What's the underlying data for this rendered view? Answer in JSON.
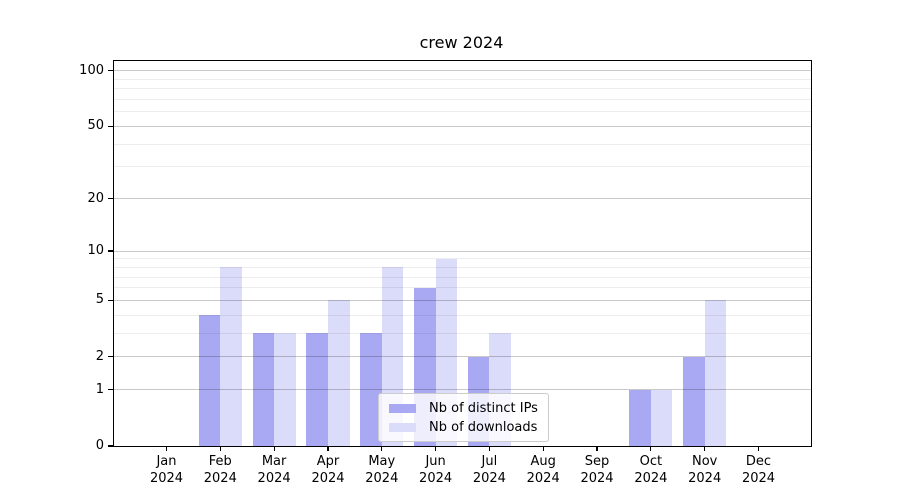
{
  "chart_data": {
    "type": "bar",
    "title": "crew 2024",
    "categories": [
      "Jan 2024",
      "Feb 2024",
      "Mar 2024",
      "Apr 2024",
      "May 2024",
      "Jun 2024",
      "Jul 2024",
      "Aug 2024",
      "Sep 2024",
      "Oct 2024",
      "Nov 2024",
      "Dec 2024"
    ],
    "series": [
      {
        "name": "Nb of distinct IPs",
        "color": "#a9a9f3",
        "values": [
          0,
          4,
          3,
          3,
          3,
          6,
          2,
          0,
          0,
          1,
          2,
          0
        ]
      },
      {
        "name": "Nb of downloads",
        "color": "#dbdbfa",
        "values": [
          0,
          8,
          3,
          5,
          8,
          9,
          3,
          0,
          0,
          1,
          5,
          0
        ]
      }
    ],
    "y_axis": {
      "scale": "log1p",
      "ticks": [
        0,
        1,
        2,
        5,
        10,
        20,
        50,
        100
      ],
      "minor_ticks": [
        3,
        4,
        6,
        7,
        8,
        9,
        30,
        40,
        60,
        70,
        80,
        90
      ],
      "max": 113
    },
    "grid": "horizontal",
    "legend_position": "lower center"
  }
}
